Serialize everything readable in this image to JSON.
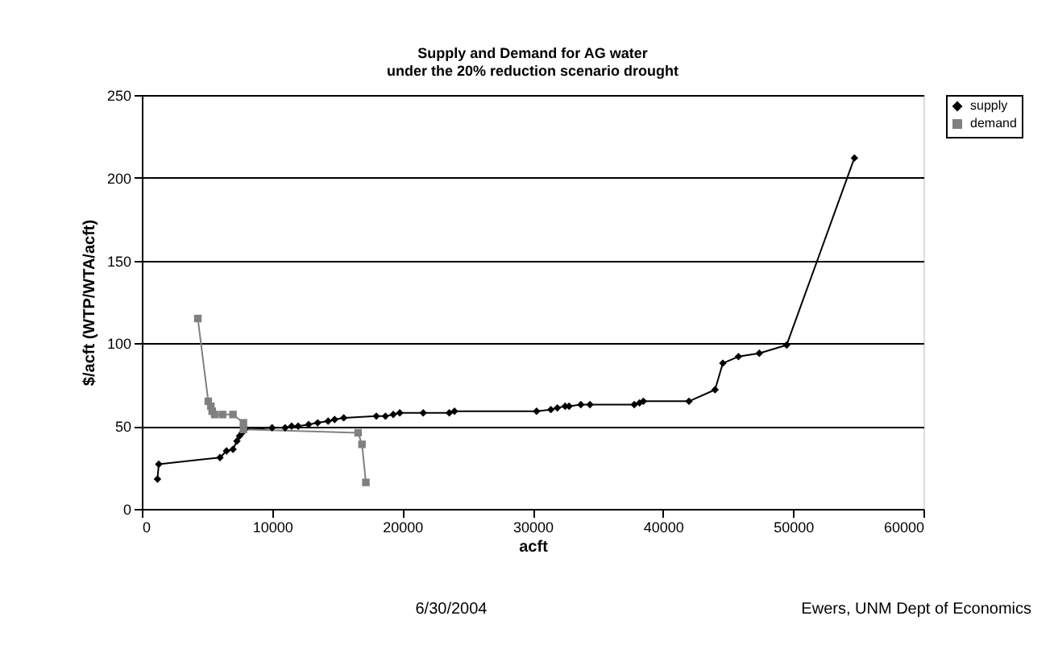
{
  "chart_data": {
    "type": "line",
    "title": [
      "Supply and Demand for AG water",
      "under the 20% reduction scenario drought"
    ],
    "xlabel": "acft",
    "ylabel": "$/acft (WTP/WTA/acft)",
    "xlim": [
      0,
      60000
    ],
    "xticks": [
      0,
      10000,
      20000,
      30000,
      40000,
      50000,
      60000
    ],
    "ylim": [
      0,
      250
    ],
    "yticks": [
      0,
      50,
      100,
      150,
      200,
      250
    ],
    "grid": "y",
    "legend": "right",
    "series": [
      {
        "name": "supply",
        "color": "#000000",
        "marker": "diamond",
        "x": [
          1200,
          1300,
          6000,
          6500,
          7000,
          7300,
          7500,
          7700,
          7900,
          10000,
          11000,
          11500,
          12000,
          12800,
          13500,
          14300,
          14800,
          15500,
          18000,
          18700,
          19300,
          19800,
          21600,
          23600,
          24000,
          30300,
          31400,
          31900,
          32500,
          32800,
          33700,
          34400,
          37800,
          38200,
          38500,
          42000,
          44000,
          44600,
          45800,
          47400,
          49500,
          54700
        ],
        "values": [
          18,
          27,
          31,
          35,
          36,
          41,
          44,
          46,
          48,
          49,
          49,
          50,
          50,
          51,
          52,
          53,
          54,
          55,
          56,
          56,
          57,
          58,
          58,
          58,
          59,
          59,
          60,
          61,
          62,
          62,
          63,
          63,
          63,
          64,
          65,
          65,
          72,
          88,
          92,
          94,
          99,
          212
        ]
      },
      {
        "name": "demand",
        "color": "#808080",
        "marker": "square",
        "x": [
          4300,
          5100,
          5300,
          5400,
          5600,
          6200,
          7000,
          7800,
          7800,
          16600,
          16900,
          17200
        ],
        "values": [
          115,
          65,
          62,
          59,
          57,
          57,
          57,
          52,
          48,
          46,
          39,
          16
        ]
      }
    ],
    "annotations": [
      "6/30/2004",
      "Ewers, UNM Dept of Economics"
    ]
  }
}
